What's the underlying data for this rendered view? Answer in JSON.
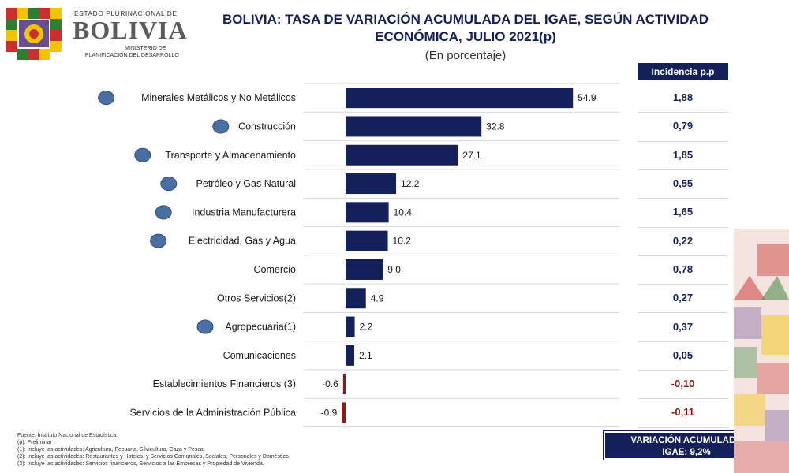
{
  "header": {
    "logo_line1": "ESTADO PLURINACIONAL DE",
    "logo_word": "BOLIVIA",
    "logo_line2": "MINISTERIO DE",
    "logo_line3": "PLANIFICACIÓN DEL DESARROLLO"
  },
  "chart_data": {
    "type": "bar",
    "orientation": "horizontal",
    "title": "BOLIVIA: TASA DE VARIACIÓN ACUMULADA DEL IGAE, SEGÚN ACTIVIDAD ECONÓMICA, JULIO 2021(p)",
    "subtitle": "(En porcentaje)",
    "categories": [
      "Minerales Metálicos y No Metálicos",
      "Construcción",
      "Transporte y Almacenamiento",
      "Petróleo y Gas Natural",
      "Industria Manufacturera",
      "Electricidad, Gas y Agua",
      "Comercio",
      "Otros Servicios(2)",
      "Agropecuaria(1)",
      "Comunicaciones",
      "Establecimientos Financieros (3)",
      "Servicios de la Administración Pública"
    ],
    "values": [
      54.9,
      32.8,
      27.1,
      12.2,
      10.4,
      10.2,
      9.0,
      4.9,
      2.2,
      2.1,
      -0.6,
      -0.9
    ],
    "value_labels": [
      "54.9",
      "32.8",
      "27.1",
      "12.2",
      "10.4",
      "10.2",
      "9.0",
      "4.9",
      "2.2",
      "2.1",
      "-0.6",
      "-0.9"
    ],
    "marker_rows": [
      0,
      1,
      2,
      3,
      4,
      5,
      8
    ],
    "incidence_header": "Incidencia p.p",
    "incidence": [
      "1,88",
      "0,79",
      "1,85",
      "0,55",
      "1,65",
      "0,22",
      "0,78",
      "0,27",
      "0,37",
      "0,05",
      "-0,10",
      "-0,11"
    ],
    "colors": {
      "bar_positive": "#14205a",
      "bar_negative": "#8b1a1a",
      "marker": "#4a6fa5",
      "grid": "#d9d9d9"
    },
    "xlim": [
      -1,
      56
    ]
  },
  "summary": {
    "line1": "VARIACIÓN ACUMULADA",
    "line2": "IGAE: 9,2%"
  },
  "notes": [
    "Fuente: Instituto Nacional de Estadística",
    "(p): Preliminar",
    "(1): Incluye las actividades: Agricultura, Pecuaria, Silvicultura, Caza y Pesca.",
    "(2): Incluye las actividades: Restaurantes y Hoteles, y Servicios Comunales, Sociales, Personales y Doméstico.",
    "(3): Incluye las actividades: Servicios financieros, Servicios a las Empresas y Propiedad de Vivienda."
  ]
}
